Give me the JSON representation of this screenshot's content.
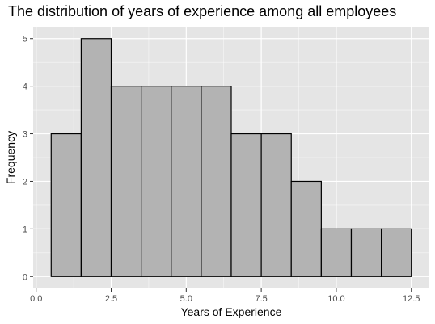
{
  "chart_data": {
    "type": "bar",
    "title": "The distribution of years of experience among all employees",
    "xlabel": "Years of Experience",
    "ylabel": "Frequency",
    "bin_width": 1,
    "bins": [
      {
        "start": 0.5,
        "end": 1.5,
        "count": 3
      },
      {
        "start": 1.5,
        "end": 2.5,
        "count": 5
      },
      {
        "start": 2.5,
        "end": 3.5,
        "count": 4
      },
      {
        "start": 3.5,
        "end": 4.5,
        "count": 4
      },
      {
        "start": 4.5,
        "end": 5.5,
        "count": 4
      },
      {
        "start": 5.5,
        "end": 6.5,
        "count": 4
      },
      {
        "start": 6.5,
        "end": 7.5,
        "count": 3
      },
      {
        "start": 7.5,
        "end": 8.5,
        "count": 3
      },
      {
        "start": 8.5,
        "end": 9.5,
        "count": 2
      },
      {
        "start": 9.5,
        "end": 10.5,
        "count": 1
      },
      {
        "start": 10.5,
        "end": 11.5,
        "count": 1
      },
      {
        "start": 11.5,
        "end": 12.5,
        "count": 1
      }
    ],
    "xlim": [
      -0.1,
      13.1
    ],
    "ylim": [
      -0.25,
      5.25
    ],
    "x_ticks": [
      0,
      2.5,
      5,
      7.5,
      10,
      12.5
    ],
    "x_tick_labels": [
      "0.0",
      "2.5",
      "5.0",
      "7.5",
      "10.0",
      "12.5"
    ],
    "y_ticks": [
      0,
      1,
      2,
      3,
      4,
      5
    ],
    "y_tick_labels": [
      "0",
      "1",
      "2",
      "3",
      "4",
      "5"
    ],
    "grid": true,
    "colors": {
      "panel_background": "#e5e5e5",
      "grid_major": "#ffffff",
      "bar_fill": "#b3b3b3",
      "bar_outline": "#000000"
    }
  }
}
